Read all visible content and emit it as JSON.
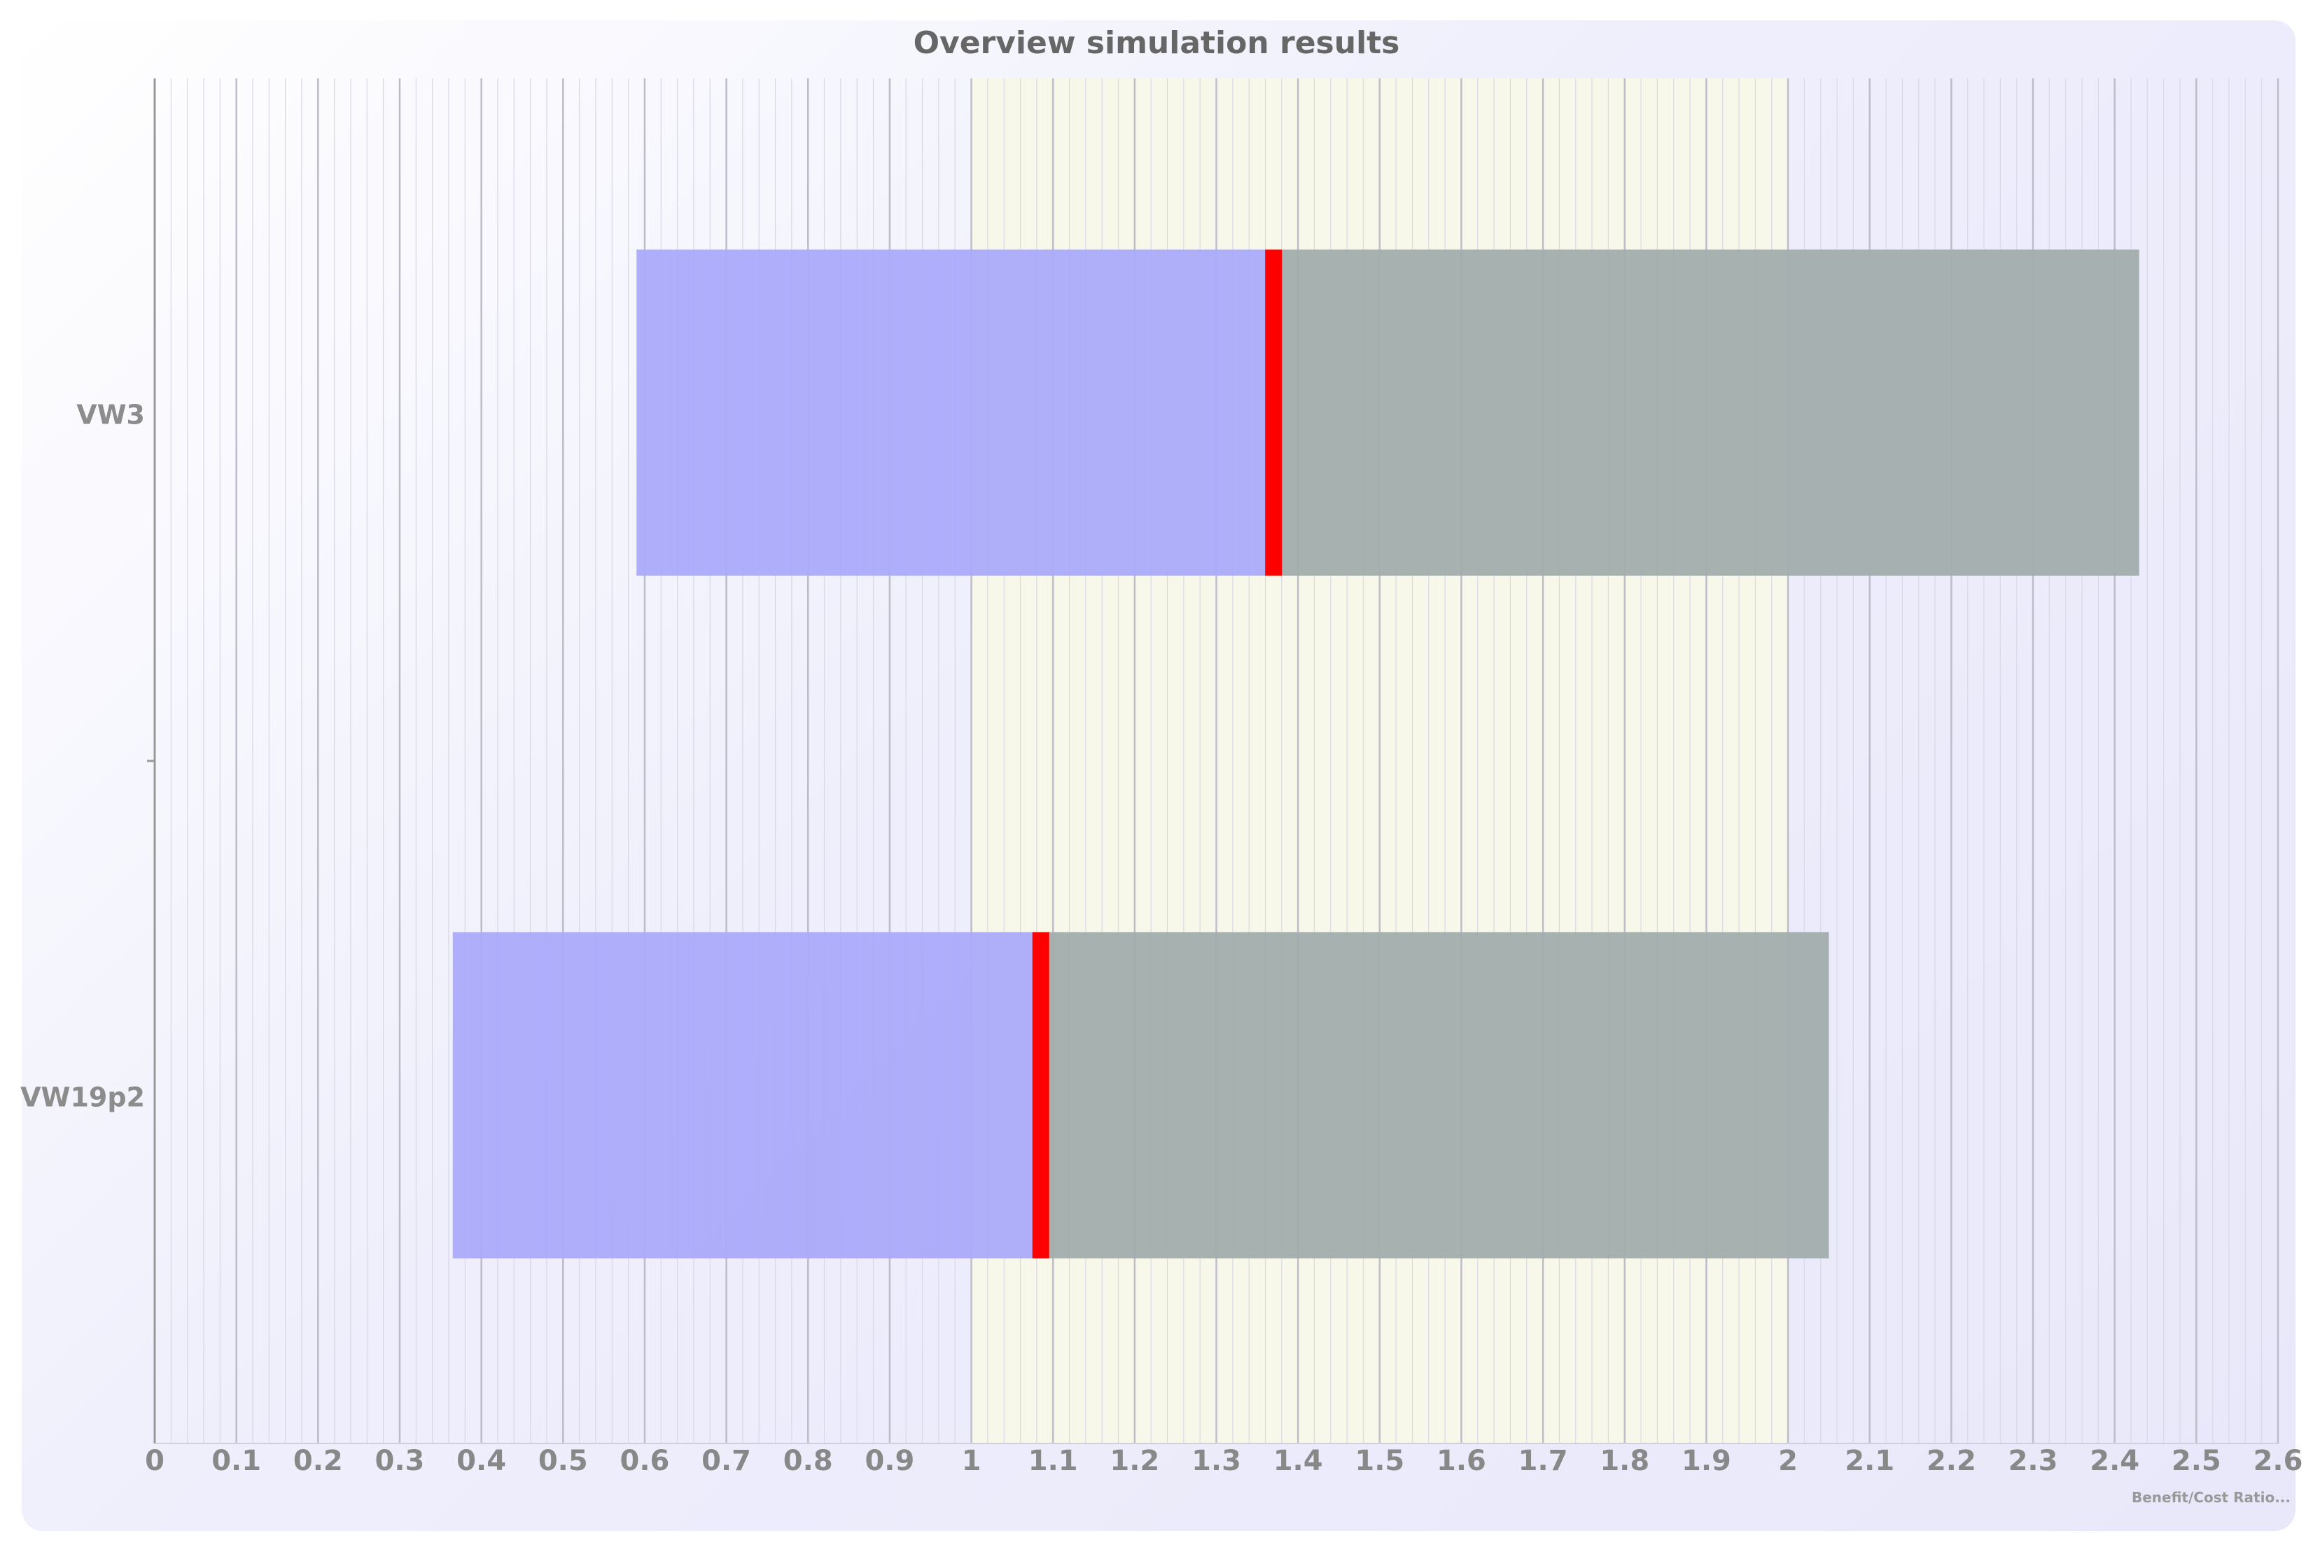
{
  "chart_data": {
    "type": "bar",
    "subtype": "horizontal-range",
    "title": "Overview simulation results",
    "xlabel": "Benefit/Cost Ratio",
    "xlim": [
      0,
      2.6
    ],
    "xticks": [
      "0",
      "0.1",
      "0.2",
      "0.3",
      "0.4",
      "0.5",
      "0.6",
      "0.7",
      "0.8",
      "0.9",
      "1",
      "1.1",
      "1.2",
      "1.3",
      "1.4",
      "1.5",
      "1.6",
      "1.7",
      "1.8",
      "1.9",
      "2",
      "2.1",
      "2.2",
      "2.3",
      "2.4",
      "2.5",
      "2.6"
    ],
    "highlight_band": [
      1,
      2
    ],
    "categories": [
      "VW3",
      "VW19p2"
    ],
    "rows": [
      {
        "category": "VW3",
        "low": 0.59,
        "marker": 1.37,
        "high": 2.43
      },
      {
        "category": "VW19p2",
        "low": 0.365,
        "marker": 1.085,
        "high": 2.05
      }
    ],
    "footnote": "Benefit/Cost Ratio...",
    "colors": {
      "lower_range": "#aaaafa",
      "upper_range": "#a2adad",
      "marker": "#ff0000",
      "band": "#f8f8ea",
      "grid": "#c6c6d4",
      "axis_text": "#888888"
    }
  }
}
